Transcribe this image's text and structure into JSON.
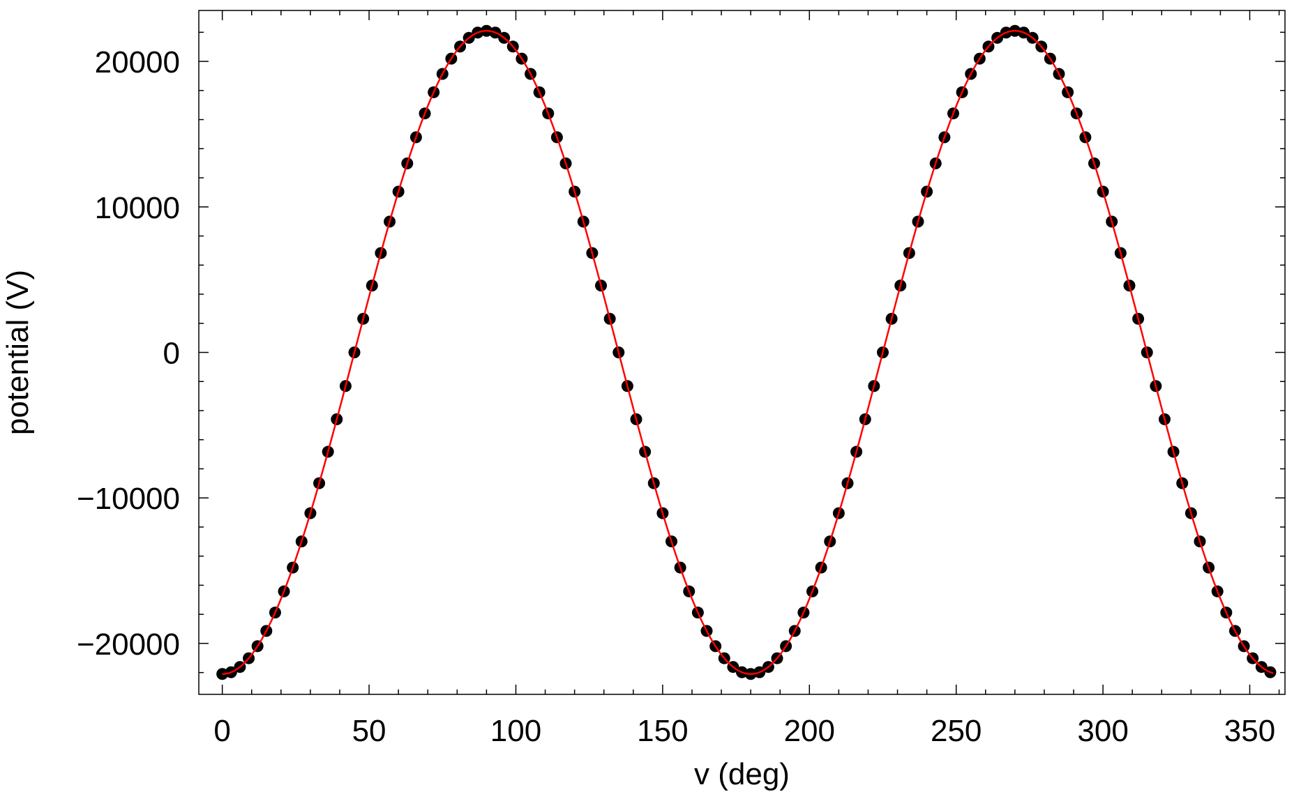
{
  "chart_data": {
    "type": "scatter",
    "title": "",
    "xlabel": "v (deg)",
    "ylabel": "potential (V)",
    "xlim": [
      -8,
      362
    ],
    "ylim": [
      -23500,
      23500
    ],
    "x_ticks": [
      0,
      50,
      100,
      150,
      200,
      250,
      300,
      350
    ],
    "x_tick_labels": [
      "0",
      "50",
      "100",
      "150",
      "200",
      "250",
      "300",
      "350"
    ],
    "x_minor_step": 10,
    "y_ticks": [
      -20000,
      -10000,
      0,
      10000,
      20000
    ],
    "y_tick_labels": [
      "−20000",
      "−10000",
      "0",
      "10000",
      "20000"
    ],
    "y_minor_step": 2000,
    "grid": false,
    "legend": "none",
    "colors": {
      "points": "#000000",
      "fit_line": "#ff0000",
      "frame": "#000000"
    },
    "series": [
      {
        "kind": "points",
        "model": "A * -cos(2 * x deg)",
        "amplitude": 22100,
        "x": [
          0,
          3,
          6,
          9,
          12,
          15,
          18,
          21,
          24,
          27,
          30,
          33,
          36,
          39,
          42,
          45,
          48,
          51,
          54,
          57,
          60,
          63,
          66,
          69,
          72,
          75,
          78,
          81,
          84,
          87,
          90,
          93,
          96,
          99,
          102,
          105,
          108,
          111,
          114,
          117,
          120,
          123,
          126,
          129,
          132,
          135,
          138,
          141,
          144,
          147,
          150,
          153,
          156,
          159,
          162,
          165,
          168,
          171,
          174,
          177,
          180,
          183,
          186,
          189,
          192,
          195,
          198,
          201,
          204,
          207,
          210,
          213,
          216,
          219,
          222,
          225,
          228,
          231,
          234,
          237,
          240,
          243,
          246,
          249,
          252,
          255,
          258,
          261,
          264,
          267,
          270,
          273,
          276,
          279,
          282,
          285,
          288,
          291,
          294,
          297,
          300,
          303,
          306,
          309,
          312,
          315,
          318,
          321,
          324,
          327,
          330,
          333,
          336,
          339,
          342,
          345,
          348,
          351,
          354,
          357
        ]
      },
      {
        "kind": "fit_line",
        "model": "A * -cos(2 * x deg)",
        "amplitude": 22100,
        "x_range": [
          0,
          358
        ]
      }
    ]
  }
}
